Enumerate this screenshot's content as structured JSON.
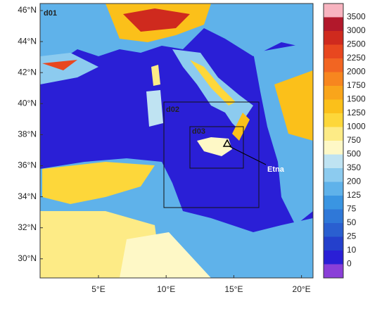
{
  "map": {
    "lat_labels": [
      "46°N",
      "44°N",
      "42°N",
      "40°N",
      "38°N",
      "36°N",
      "34°N",
      "32°N",
      "30°N"
    ],
    "lon_labels": [
      "5°E",
      "10°E",
      "15°E",
      "20°E"
    ],
    "domains": [
      "d01",
      "d02",
      "d03"
    ],
    "annotation": "Etna",
    "colorbar": {
      "labels": [
        "3500",
        "3000",
        "2500",
        "2250",
        "2000",
        "1750",
        "1500",
        "1250",
        "1000",
        "750",
        "500",
        "350",
        "200",
        "125",
        "75",
        "50",
        "25",
        "10",
        "0"
      ],
      "colors": [
        "#f8b4c0",
        "#b2182b",
        "#cf2a1e",
        "#e8471f",
        "#f26522",
        "#f7861f",
        "#f9a51b",
        "#fbc01a",
        "#fdd73a",
        "#fdeb86",
        "#fef8c6",
        "#bfe3f2",
        "#8ccbef",
        "#5fb2ea",
        "#3a95e2",
        "#2f78d8",
        "#2a5fd0",
        "#2440cc",
        "#2a1fd6",
        "#8a3fd8"
      ]
    }
  }
}
